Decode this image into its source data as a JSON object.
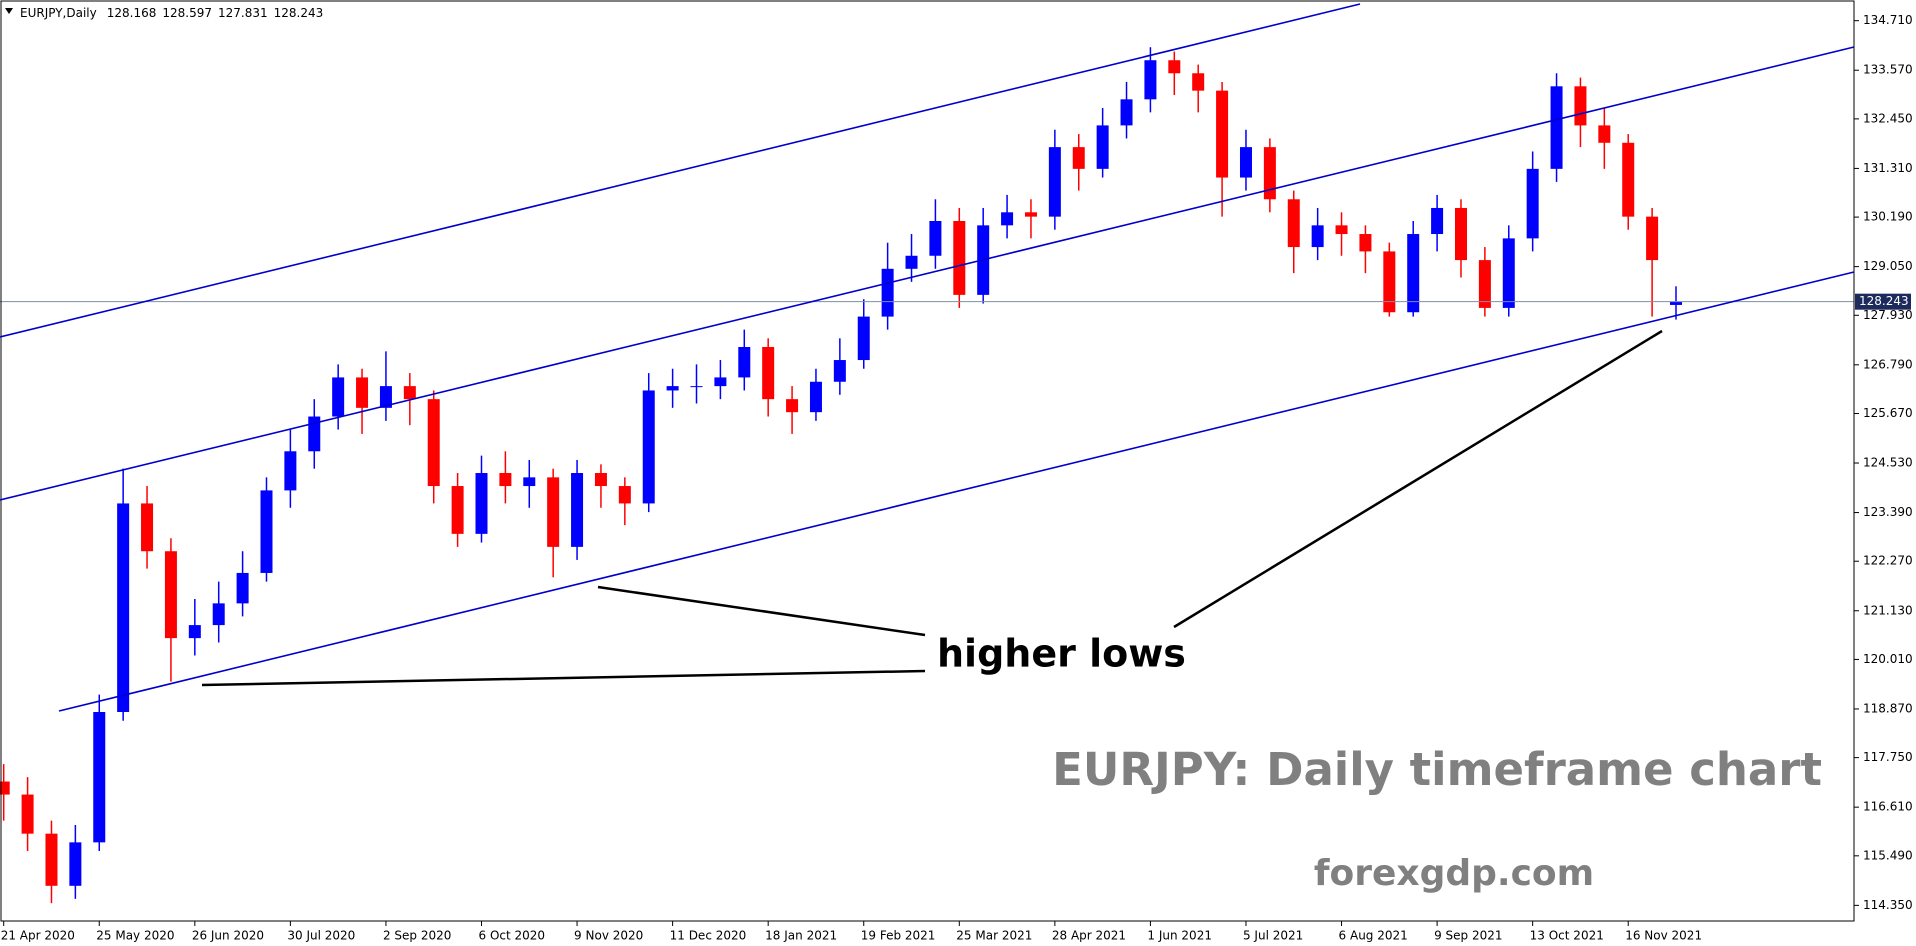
{
  "chart_data": {
    "type": "candlestick",
    "symbol": "EURJPY,Daily",
    "annotations": [
      "higher lows",
      "EURJPY: Daily timeframe chart",
      "forexgdp.com"
    ],
    "categories": [
      "21 Apr 2020",
      null,
      null,
      null,
      "25 May 2020",
      null,
      null,
      null,
      "26 Jun 2020",
      null,
      null,
      null,
      "30 Jul 2020",
      null,
      null,
      null,
      "2 Sep 2020",
      null,
      null,
      null,
      "6 Oct 2020",
      null,
      null,
      null,
      "9 Nov 2020",
      null,
      null,
      null,
      "11 Dec 2020",
      null,
      null,
      null,
      "18 Jan 2021",
      null,
      null,
      null,
      "19 Feb 2021",
      null,
      null,
      null,
      "25 Mar 2021",
      null,
      null,
      null,
      "28 Apr 2021",
      null,
      null,
      null,
      "1 Jun 2021",
      null,
      null,
      null,
      "5 Jul 2021",
      null,
      null,
      null,
      "6 Aug 2021",
      null,
      null,
      null,
      "9 Sep 2021",
      null,
      null,
      null,
      "13 Oct 2021",
      null,
      null,
      null,
      "16 Nov 2021",
      null,
      null
    ],
    "open": [
      117.2,
      116.9,
      116.0,
      114.8,
      115.8,
      118.8,
      123.6,
      122.5,
      120.5,
      120.8,
      121.3,
      122.0,
      123.9,
      124.8,
      125.6,
      126.5,
      125.8,
      126.3,
      126.0,
      124.0,
      122.9,
      124.3,
      124.0,
      124.2,
      122.6,
      124.3,
      124.0,
      123.6,
      126.2,
      126.3,
      126.3,
      126.5,
      127.2,
      126.0,
      125.7,
      126.4,
      126.9,
      127.9,
      129.0,
      129.3,
      130.1,
      128.4,
      130.0,
      130.3,
      130.2,
      131.8,
      131.3,
      132.3,
      132.9,
      133.8,
      133.5,
      133.1,
      131.1,
      131.8,
      130.6,
      129.5,
      130.0,
      129.8,
      129.4,
      128.0,
      129.8,
      130.4,
      129.2,
      128.1,
      129.7,
      131.3,
      133.2,
      132.3,
      131.9,
      130.2,
      128.168
    ],
    "high": [
      117.6,
      117.3,
      116.3,
      116.2,
      119.2,
      124.4,
      124.0,
      122.8,
      121.4,
      121.8,
      122.5,
      124.2,
      125.3,
      126.0,
      126.8,
      126.7,
      127.1,
      126.6,
      126.2,
      124.3,
      124.7,
      124.8,
      124.6,
      124.4,
      124.6,
      124.5,
      124.2,
      126.6,
      126.7,
      126.8,
      126.9,
      127.6,
      127.4,
      126.3,
      126.7,
      127.4,
      128.3,
      129.6,
      129.8,
      130.6,
      130.4,
      130.4,
      130.7,
      130.6,
      132.2,
      132.1,
      132.7,
      133.3,
      134.1,
      134.0,
      133.7,
      133.3,
      132.2,
      132.0,
      130.8,
      130.4,
      130.3,
      130.0,
      129.6,
      130.1,
      130.7,
      130.6,
      129.5,
      130.0,
      131.7,
      133.5,
      133.4,
      132.7,
      132.1,
      130.4,
      128.597
    ],
    "low": [
      116.3,
      115.6,
      114.4,
      114.5,
      115.6,
      118.6,
      122.1,
      119.5,
      120.1,
      120.4,
      121.0,
      121.8,
      123.5,
      124.4,
      125.3,
      125.2,
      125.5,
      125.4,
      123.6,
      122.6,
      122.7,
      123.6,
      123.5,
      121.9,
      122.3,
      123.5,
      123.1,
      123.4,
      125.8,
      125.9,
      126.0,
      126.2,
      125.6,
      125.2,
      125.5,
      126.1,
      126.7,
      127.6,
      128.7,
      129.0,
      128.1,
      128.2,
      129.7,
      129.7,
      129.9,
      130.8,
      131.1,
      132.0,
      132.6,
      133.0,
      132.6,
      130.2,
      130.8,
      130.3,
      128.9,
      129.2,
      129.3,
      128.9,
      127.9,
      127.9,
      129.4,
      128.8,
      127.9,
      127.9,
      129.4,
      131.0,
      131.8,
      131.3,
      129.9,
      127.9,
      127.831
    ],
    "close": [
      116.9,
      116.0,
      114.8,
      115.8,
      118.8,
      123.6,
      122.5,
      120.5,
      120.8,
      121.3,
      122.0,
      123.9,
      124.8,
      125.6,
      126.5,
      125.8,
      126.3,
      126.0,
      124.0,
      122.9,
      124.3,
      124.0,
      124.2,
      122.6,
      124.3,
      124.0,
      123.6,
      126.2,
      126.3,
      126.3,
      126.5,
      127.2,
      126.0,
      125.7,
      126.4,
      126.9,
      127.9,
      129.0,
      129.3,
      130.1,
      128.4,
      130.0,
      130.3,
      130.2,
      131.8,
      131.3,
      132.3,
      132.9,
      133.8,
      133.5,
      133.1,
      131.1,
      131.8,
      130.6,
      129.5,
      130.0,
      129.8,
      129.4,
      128.0,
      129.8,
      130.4,
      129.2,
      128.1,
      129.7,
      131.3,
      133.2,
      132.3,
      131.9,
      130.2,
      129.2,
      128.243
    ],
    "up_color": "#0000ff",
    "down_color": "#ff0000",
    "ylim": [
      113.99,
      135.14
    ],
    "yticks": [
      {
        "value": 114.35,
        "label": "114.350"
      },
      {
        "value": 115.49,
        "label": "115.490"
      },
      {
        "value": 116.61,
        "label": "116.610"
      },
      {
        "value": 117.75,
        "label": "117.750"
      },
      {
        "value": 118.87,
        "label": "118.870"
      },
      {
        "value": 120.01,
        "label": "120.010"
      },
      {
        "value": 121.13,
        "label": "121.130"
      },
      {
        "value": 122.27,
        "label": "122.270"
      },
      {
        "value": 123.39,
        "label": "123.390"
      },
      {
        "value": 124.53,
        "label": "124.530"
      },
      {
        "value": 125.67,
        "label": "125.670"
      },
      {
        "value": 126.79,
        "label": "126.790"
      },
      {
        "value": 127.93,
        "label": "127.930"
      },
      {
        "value": 129.05,
        "label": "129.050"
      },
      {
        "value": 130.19,
        "label": "130.190"
      },
      {
        "value": 131.31,
        "label": "131.310"
      },
      {
        "value": 132.45,
        "label": "132.450"
      },
      {
        "value": 133.57,
        "label": "133.570"
      },
      {
        "value": 134.71,
        "label": "134.710"
      }
    ]
  }
}
